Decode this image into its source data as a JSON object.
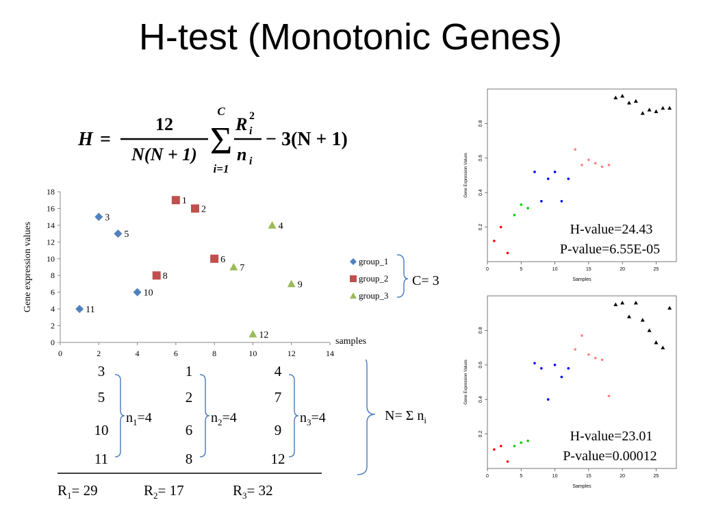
{
  "title": "H-test (Monotonic Genes)",
  "formula": {
    "lhs": "H",
    "eq": "=",
    "numerator": "12",
    "denominator": "N(N + 1)",
    "sum_top": "C",
    "sum_bottom": "i=1",
    "frac2_num_base": "R",
    "frac2_num_sub": "i",
    "frac2_num_sup": "2",
    "frac2_den_base": "n",
    "frac2_den_sub": "i",
    "tail": "− 3(N + 1)"
  },
  "chart_data": [
    {
      "type": "scatter",
      "ylabel": "Gene expression values",
      "xlabel": "samples",
      "xlim": [
        0,
        14
      ],
      "ylim": [
        0,
        18
      ],
      "xticks": [
        0,
        2,
        4,
        6,
        8,
        10,
        12,
        14
      ],
      "yticks": [
        0,
        2,
        4,
        6,
        8,
        10,
        12,
        14,
        16,
        18
      ],
      "series": [
        {
          "name": "group_1",
          "color": "#4f81bd",
          "marker": "diamond",
          "points": [
            {
              "x": 1,
              "y": 4,
              "label": "11"
            },
            {
              "x": 2,
              "y": 15,
              "label": "3"
            },
            {
              "x": 3,
              "y": 13,
              "label": "5"
            },
            {
              "x": 4,
              "y": 6,
              "label": "10"
            }
          ]
        },
        {
          "name": "group_2",
          "color": "#c0504d",
          "marker": "square",
          "points": [
            {
              "x": 5,
              "y": 8,
              "label": "8"
            },
            {
              "x": 6,
              "y": 17,
              "label": "1"
            },
            {
              "x": 7,
              "y": 16,
              "label": "2"
            },
            {
              "x": 8,
              "y": 10,
              "label": "6"
            }
          ]
        },
        {
          "name": "group_3",
          "color": "#9bbb59",
          "marker": "triangle",
          "points": [
            {
              "x": 9,
              "y": 9,
              "label": "7"
            },
            {
              "x": 10,
              "y": 1,
              "label": "12"
            },
            {
              "x": 11,
              "y": 14,
              "label": "4"
            },
            {
              "x": 12,
              "y": 7,
              "label": "9"
            }
          ]
        }
      ],
      "legend_position": "right",
      "annotation": "C= 3"
    },
    {
      "type": "scatter",
      "xlabel": "Samples",
      "ylabel": "Gene Expression Values",
      "xlim": [
        0,
        28
      ],
      "ylim": [
        0,
        1
      ],
      "xticks": [
        0,
        5,
        10,
        15,
        20,
        25
      ],
      "yticks": [
        0.2,
        0.4,
        0.6,
        0.8
      ],
      "series": [
        {
          "color": "#ff0000",
          "x": [
            1,
            2,
            3
          ],
          "y": [
            0.12,
            0.2,
            0.05
          ]
        },
        {
          "color": "#00cc00",
          "x": [
            4,
            5,
            6
          ],
          "y": [
            0.27,
            0.33,
            0.31
          ]
        },
        {
          "color": "#0000ff",
          "x": [
            7,
            8,
            9,
            10,
            11,
            12
          ],
          "y": [
            0.52,
            0.35,
            0.48,
            0.52,
            0.35,
            0.48
          ]
        },
        {
          "color": "#ff8080",
          "x": [
            13,
            14,
            15,
            16,
            17,
            18
          ],
          "y": [
            0.65,
            0.56,
            0.59,
            0.57,
            0.55,
            0.56
          ]
        },
        {
          "color": "#000000",
          "marker": "triangle",
          "x": [
            19,
            20,
            21,
            22,
            23,
            24,
            25,
            26,
            27
          ],
          "y": [
            0.95,
            0.96,
            0.92,
            0.93,
            0.86,
            0.88,
            0.87,
            0.89,
            0.89
          ]
        }
      ],
      "annotations": [
        "H-value=24.43",
        "P-value=6.55E-05"
      ]
    },
    {
      "type": "scatter",
      "xlabel": "Samples",
      "ylabel": "Gene Expression Values",
      "xlim": [
        0,
        28
      ],
      "ylim": [
        0,
        1
      ],
      "xticks": [
        0,
        5,
        10,
        15,
        20,
        25
      ],
      "yticks": [
        0.2,
        0.4,
        0.6,
        0.8
      ],
      "series": [
        {
          "color": "#ff0000",
          "x": [
            1,
            2,
            3
          ],
          "y": [
            0.11,
            0.13,
            0.04
          ]
        },
        {
          "color": "#00cc00",
          "x": [
            4,
            5,
            6
          ],
          "y": [
            0.13,
            0.15,
            0.16
          ]
        },
        {
          "color": "#0000ff",
          "x": [
            7,
            8,
            9,
            10,
            11,
            12
          ],
          "y": [
            0.61,
            0.58,
            0.4,
            0.6,
            0.53,
            0.58
          ]
        },
        {
          "color": "#ff8080",
          "x": [
            13,
            14,
            15,
            16,
            17,
            18
          ],
          "y": [
            0.69,
            0.77,
            0.66,
            0.64,
            0.63,
            0.42
          ]
        },
        {
          "color": "#000000",
          "marker": "triangle",
          "x": [
            19,
            20,
            21,
            22,
            23,
            24,
            25,
            26,
            27
          ],
          "y": [
            0.95,
            0.96,
            0.88,
            0.96,
            0.86,
            0.8,
            0.73,
            0.7,
            0.93
          ]
        }
      ],
      "annotations": [
        "H-value=23.01",
        "P-value=0.00012"
      ]
    }
  ],
  "ranks_table": {
    "groups": [
      {
        "ranks": [
          "3",
          "5",
          "10",
          "11"
        ],
        "n_base": "n",
        "n_sub": "1",
        "n_val": "=4",
        "R_base": "R",
        "R_sub": "1",
        "R_val": "= 29"
      },
      {
        "ranks": [
          "1",
          "2",
          "6",
          "8"
        ],
        "n_base": "n",
        "n_sub": "2",
        "n_val": "=4",
        "R_base": "R",
        "R_sub": "2",
        "R_val": "=  17"
      },
      {
        "ranks": [
          "4",
          "7",
          "9",
          "12"
        ],
        "n_base": "n",
        "n_sub": "3",
        "n_val": "=4",
        "R_base": "R",
        "R_sub": "3",
        "R_val": "=  32"
      }
    ],
    "N_text": "N= Σ n",
    "N_sub": "i"
  }
}
